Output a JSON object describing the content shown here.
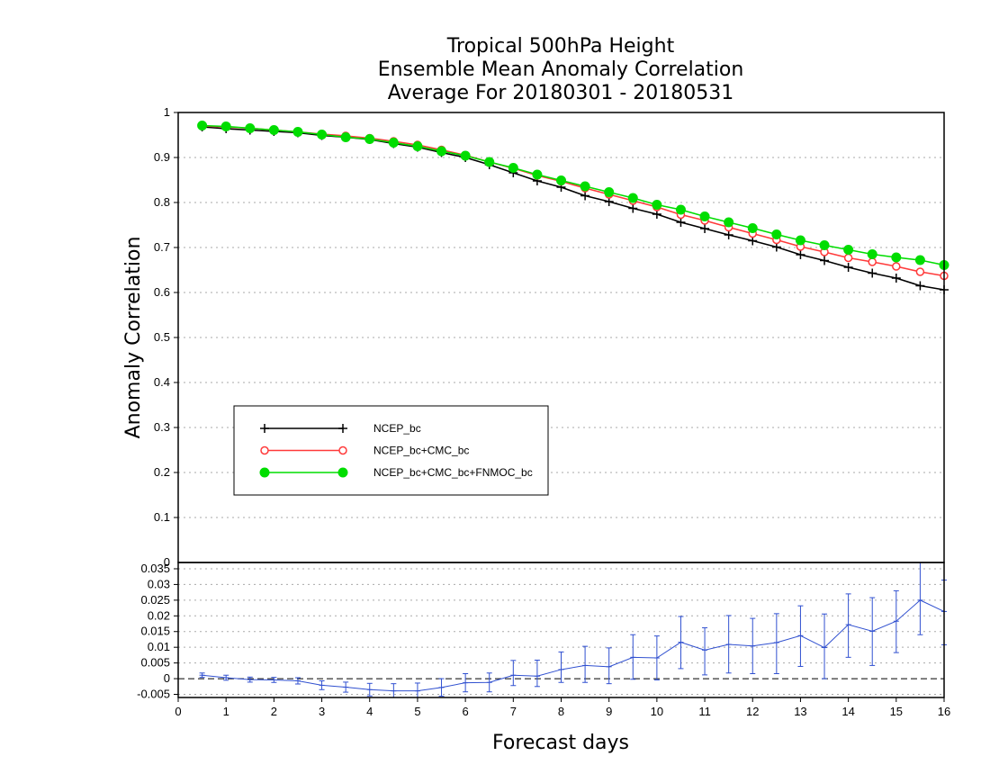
{
  "colors": {
    "ncep": "#000000",
    "ncep_cmc": "#ff3a3a",
    "ncep_cmc_fnmoc": "#00dd00",
    "diff": "#3050d0",
    "grid": "#aaaaaa"
  },
  "chart_data": [
    {
      "type": "line",
      "title": [
        "Tropical 500hPa Height",
        "Ensemble Mean Anomaly Correlation",
        "Average For 20180301 - 20180531"
      ],
      "xlabel": "Forecast days",
      "ylabel": "Anomaly Correlation",
      "xlim": [
        0,
        16
      ],
      "ylim": [
        0,
        1
      ],
      "yticks": [
        "0.1",
        "0.2",
        "0.3",
        "0.4",
        "0.5",
        "0.6",
        "0.7",
        "0.8",
        "0.9",
        "1"
      ],
      "grid": true,
      "legend_position": "lower-left",
      "x": [
        0.5,
        1,
        1.5,
        2,
        2.5,
        3,
        3.5,
        4,
        4.5,
        5,
        5.5,
        6,
        6.5,
        7,
        7.5,
        8,
        8.5,
        9,
        9.5,
        10,
        10.5,
        11,
        11.5,
        12,
        12.5,
        13,
        13.5,
        14,
        14.5,
        15,
        15.5,
        16
      ],
      "series": [
        {
          "name": "NCEP_bc",
          "marker": "plus",
          "color_key": "ncep",
          "values": [
            0.968,
            0.964,
            0.961,
            0.958,
            0.955,
            0.949,
            0.945,
            0.94,
            0.931,
            0.923,
            0.911,
            0.9,
            0.884,
            0.866,
            0.848,
            0.834,
            0.815,
            0.802,
            0.787,
            0.774,
            0.756,
            0.742,
            0.728,
            0.715,
            0.701,
            0.684,
            0.671,
            0.656,
            0.643,
            0.632,
            0.615,
            0.606
          ]
        },
        {
          "name": "NCEP_bc+CMC_bc",
          "marker": "open-circle",
          "color_key": "ncep_cmc",
          "values": [
            0.97,
            0.968,
            0.965,
            0.961,
            0.957,
            0.952,
            0.948,
            0.943,
            0.936,
            0.928,
            0.917,
            0.905,
            0.89,
            0.876,
            0.86,
            0.847,
            0.832,
            0.818,
            0.804,
            0.79,
            0.773,
            0.76,
            0.745,
            0.731,
            0.717,
            0.702,
            0.69,
            0.677,
            0.668,
            0.658,
            0.646,
            0.637
          ]
        },
        {
          "name": "NCEP_bc+CMC_bc+FNMOC_bc",
          "marker": "filled-circle",
          "color_key": "ncep_cmc_fnmoc",
          "values": [
            0.971,
            0.969,
            0.965,
            0.961,
            0.957,
            0.951,
            0.945,
            0.941,
            0.933,
            0.925,
            0.914,
            0.904,
            0.89,
            0.877,
            0.862,
            0.849,
            0.836,
            0.823,
            0.81,
            0.795,
            0.784,
            0.769,
            0.756,
            0.743,
            0.729,
            0.716,
            0.705,
            0.695,
            0.685,
            0.678,
            0.672,
            0.661
          ]
        }
      ]
    },
    {
      "type": "line",
      "xlim": [
        0,
        16
      ],
      "ylim": [
        -0.006,
        0.037
      ],
      "yticks": [
        "-0.005",
        "0",
        "0.005",
        "0.01",
        "0.015",
        "0.02",
        "0.025",
        "0.03",
        "0.035"
      ],
      "xticks": [
        "0",
        "1",
        "2",
        "3",
        "4",
        "5",
        "6",
        "7",
        "8",
        "9",
        "10",
        "11",
        "12",
        "13",
        "14",
        "15",
        "16"
      ],
      "grid": true,
      "zero_line": true,
      "x": [
        0.5,
        1,
        1.5,
        2,
        2.5,
        3,
        3.5,
        4,
        4.5,
        5,
        5.5,
        6,
        6.5,
        7,
        7.5,
        8,
        8.5,
        9,
        9.5,
        10,
        10.5,
        11,
        11.5,
        12,
        12.5,
        13,
        13.5,
        14,
        14.5,
        15,
        15.5,
        16
      ],
      "series": [
        {
          "color_key": "diff",
          "with_error_bars": true,
          "values": [
            0.0011,
            0.0003,
            -0.0003,
            -0.0004,
            -0.0007,
            -0.0021,
            -0.0027,
            -0.0035,
            -0.0039,
            -0.0039,
            -0.0028,
            -0.0013,
            -0.0012,
            0.0011,
            0.0008,
            0.0029,
            0.0042,
            0.0038,
            0.0068,
            0.0066,
            0.0116,
            0.0091,
            0.0109,
            0.0104,
            0.0115,
            0.0137,
            0.0099,
            0.0172,
            0.0151,
            0.0183,
            0.025,
            0.0214
          ],
          "err_low": [
            0.0004,
            -0.0005,
            -0.0011,
            -0.0012,
            -0.0017,
            -0.0035,
            -0.0043,
            -0.0055,
            -0.0062,
            -0.0064,
            -0.0056,
            -0.0042,
            -0.0042,
            -0.0022,
            -0.0025,
            -0.0012,
            -0.0012,
            -0.0016,
            -0.0002,
            -0.0004,
            0.0032,
            0.0012,
            0.0018,
            0.0016,
            0.0016,
            0.0039,
            0.0,
            0.0068,
            0.0042,
            0.0083,
            0.014,
            0.0108
          ],
          "err_high": [
            0.0018,
            0.0011,
            0.0005,
            0.0004,
            0.0003,
            -0.0007,
            -0.0011,
            -0.0015,
            -0.0016,
            -0.0014,
            0.0,
            0.0016,
            0.0018,
            0.0058,
            0.0059,
            0.0085,
            0.0103,
            0.0098,
            0.014,
            0.0136,
            0.0198,
            0.0162,
            0.0201,
            0.0192,
            0.0207,
            0.0232,
            0.0206,
            0.027,
            0.0258,
            0.028,
            0.037,
            0.0314
          ]
        }
      ]
    }
  ]
}
